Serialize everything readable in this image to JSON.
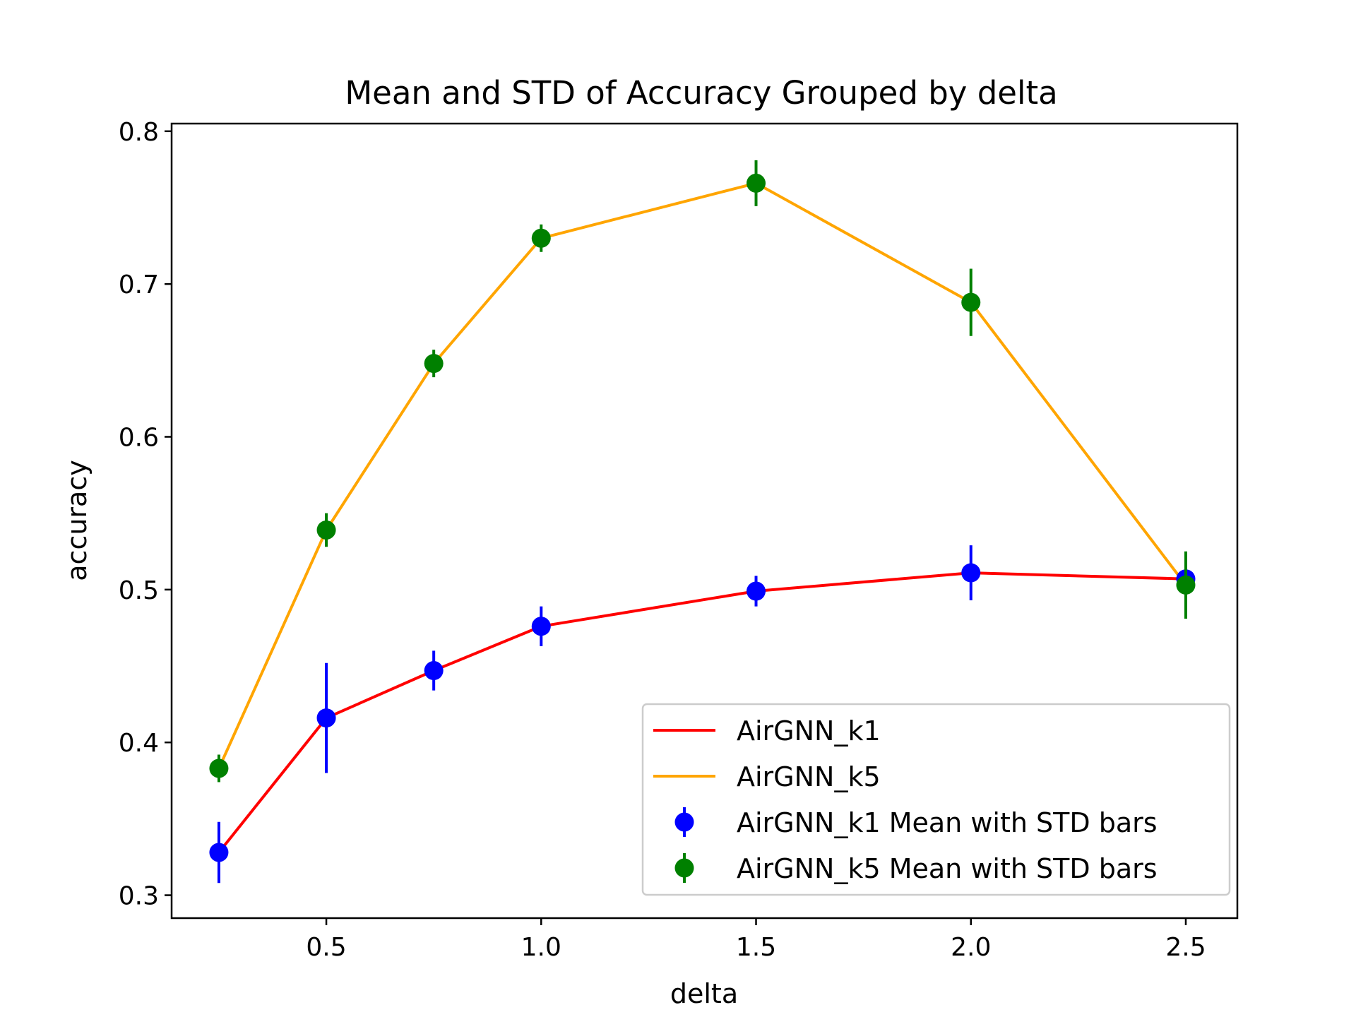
{
  "chart_data": {
    "type": "line",
    "title": "Mean and STD of Accuracy Grouped by delta",
    "xlabel": "delta",
    "ylabel": "accuracy",
    "xlim": [
      0.14,
      2.62
    ],
    "ylim": [
      0.285,
      0.805
    ],
    "xticks": [
      0.5,
      1.0,
      1.5,
      2.0,
      2.5
    ],
    "xtick_labels": [
      "0.5",
      "1.0",
      "1.5",
      "2.0",
      "2.5"
    ],
    "yticks": [
      0.3,
      0.4,
      0.5,
      0.6,
      0.7,
      0.8
    ],
    "ytick_labels": [
      "0.3",
      "0.4",
      "0.5",
      "0.6",
      "0.7",
      "0.8"
    ],
    "grid": false,
    "legend_position": "bottom-right",
    "x": [
      0.25,
      0.5,
      0.75,
      1.0,
      1.5,
      2.0,
      2.5
    ],
    "series": [
      {
        "name": "AirGNN_k1",
        "line_color": "#ff0000",
        "marker_color": "#0000ff",
        "values": [
          0.328,
          0.416,
          0.447,
          0.476,
          0.499,
          0.511,
          0.507
        ],
        "std": [
          0.02,
          0.036,
          0.013,
          0.013,
          0.01,
          0.018,
          0.0
        ]
      },
      {
        "name": "AirGNN_k5",
        "line_color": "#ffa500",
        "marker_color": "#008000",
        "values": [
          0.383,
          0.539,
          0.648,
          0.73,
          0.766,
          0.688,
          0.503
        ],
        "std": [
          0.009,
          0.011,
          0.009,
          0.009,
          0.015,
          0.022,
          0.022
        ]
      }
    ],
    "legend": [
      {
        "label": "AirGNN_k1",
        "kind": "line",
        "color": "#ff0000"
      },
      {
        "label": "AirGNN_k5",
        "kind": "line",
        "color": "#ffa500"
      },
      {
        "label": "AirGNN_k1 Mean with STD bars",
        "kind": "errorbar",
        "color": "#0000ff"
      },
      {
        "label": "AirGNN_k5 Mean with STD bars",
        "kind": "errorbar",
        "color": "#008000"
      }
    ]
  }
}
